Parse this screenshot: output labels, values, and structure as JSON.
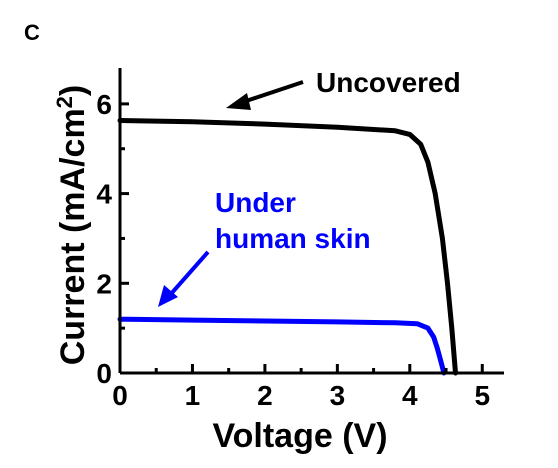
{
  "panel_label": "C",
  "chart_data": {
    "type": "line",
    "title": "",
    "xlabel": "Voltage (V)",
    "ylabel": "Current (mA/cm",
    "ylabel_sup": "2",
    "ylabel_close": ")",
    "xlim": [
      0,
      5.3
    ],
    "ylim": [
      0,
      6.8
    ],
    "xticks": [
      0,
      1,
      2,
      3,
      4,
      5
    ],
    "yticks": [
      0,
      2,
      4,
      6
    ],
    "xtick_labels": [
      "0",
      "1",
      "2",
      "3",
      "4",
      "5"
    ],
    "ytick_labels": [
      "0",
      "2",
      "4",
      "6"
    ],
    "grid": false,
    "series": [
      {
        "color": "#000000",
        "x": [
          0,
          1,
          2,
          3,
          3.8,
          4.0,
          4.15,
          4.25,
          4.35,
          4.45,
          4.52,
          4.58,
          4.63
        ],
        "y": [
          5.63,
          5.6,
          5.55,
          5.48,
          5.4,
          5.32,
          5.1,
          4.7,
          4.0,
          3.0,
          2.0,
          1.0,
          0
        ]
      },
      {
        "color": "#0000ff",
        "x": [
          0,
          1,
          2,
          3,
          3.8,
          4.1,
          4.25,
          4.33,
          4.38,
          4.43,
          4.47
        ],
        "y": [
          1.2,
          1.18,
          1.16,
          1.14,
          1.12,
          1.1,
          1.0,
          0.8,
          0.55,
          0.25,
          0
        ]
      }
    ],
    "annotations": [
      {
        "lines": [
          "Uncovered"
        ],
        "color": "#000000"
      },
      {
        "lines": [
          "Under",
          "human skin"
        ],
        "color": "#0000ff"
      }
    ]
  }
}
